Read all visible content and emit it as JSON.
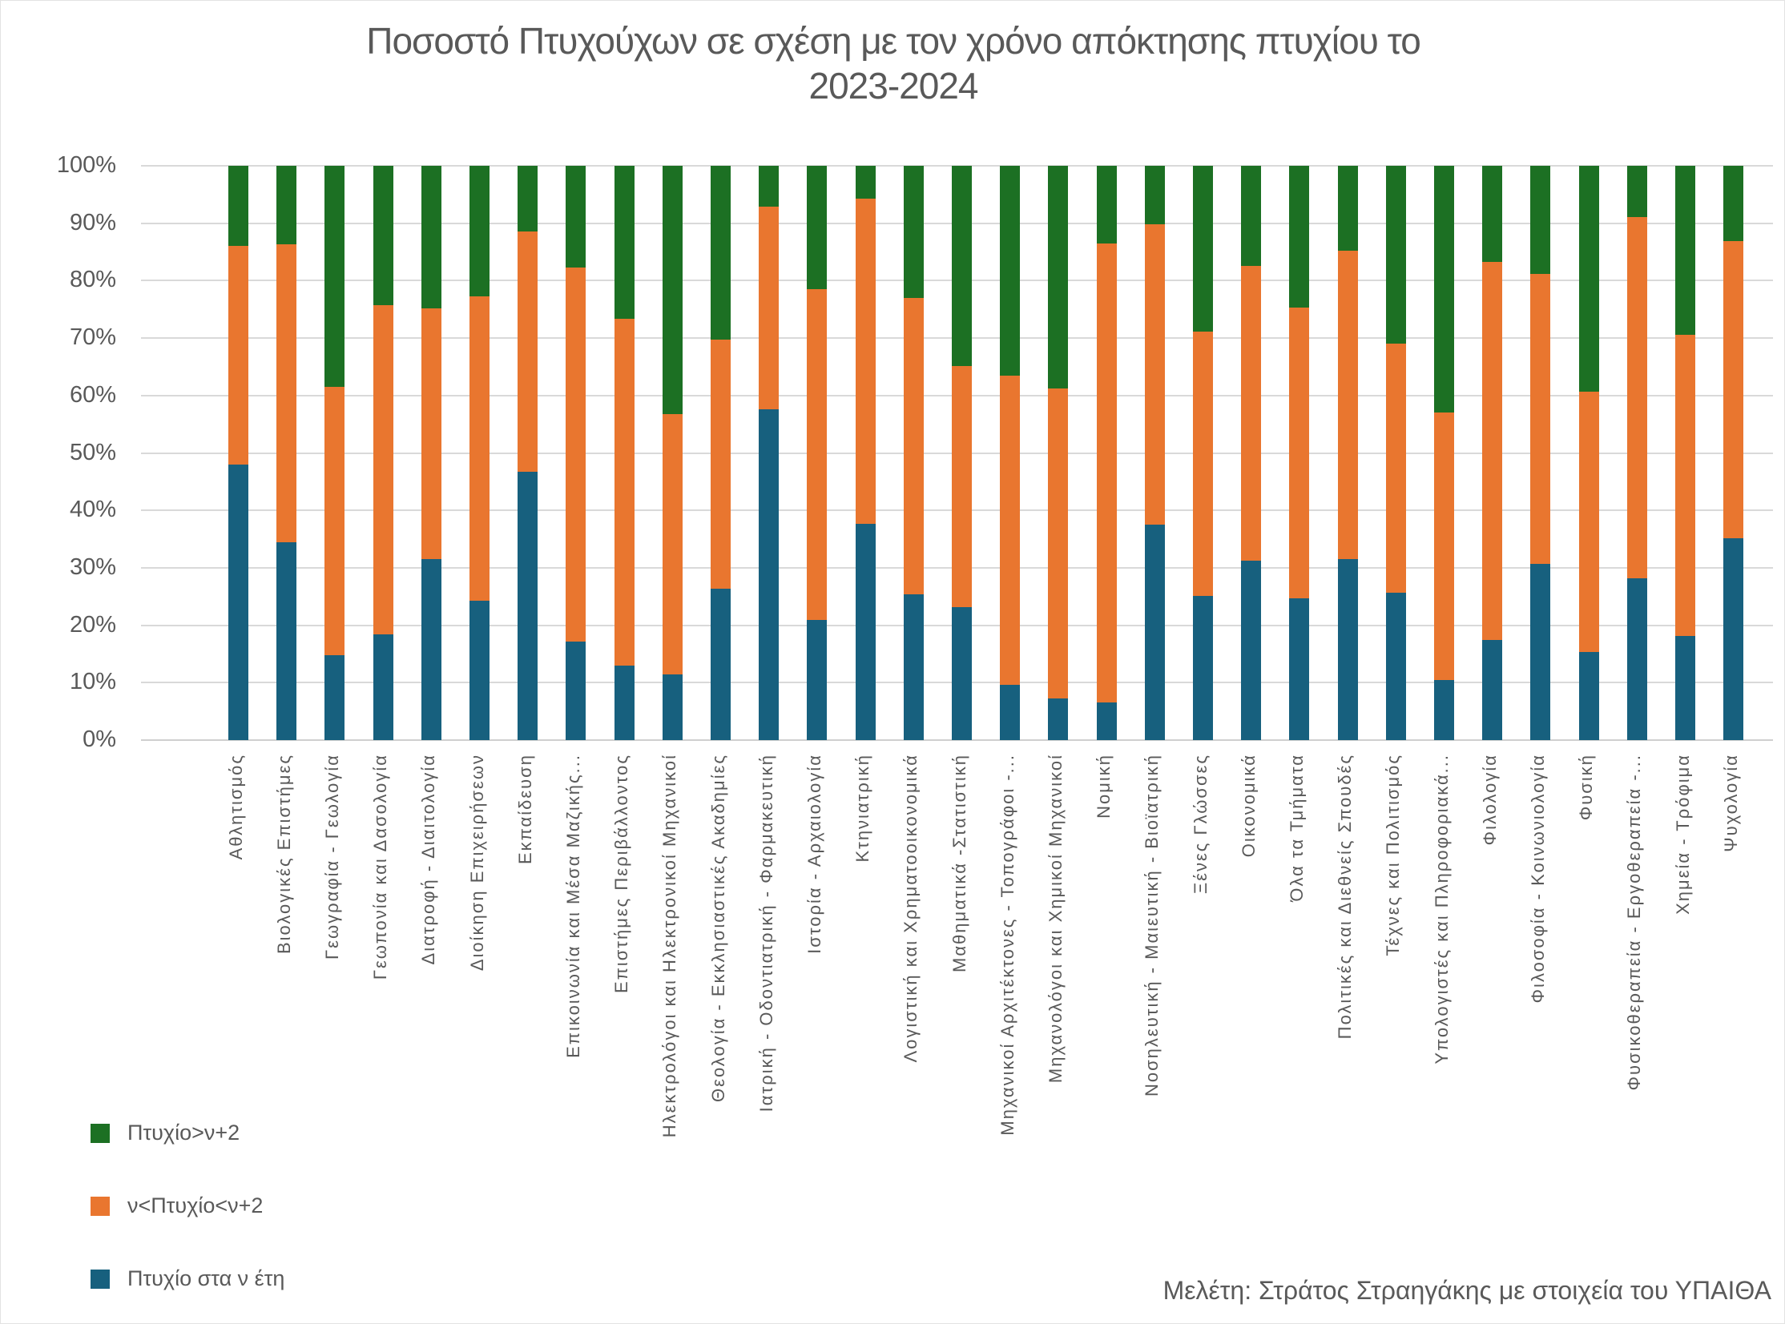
{
  "title": {
    "line1": "Ποσοστό Πτυχούχων σε σχέση με τον χρόνο απόκτησης πτυχίου το",
    "line2": "2023-2024"
  },
  "credit": "Μελέτη: Στράτος Στραηγάκης με στοιχεία του ΥΠΑΙΘΑ",
  "colors": {
    "blue": "#17607E",
    "orange": "#E9762F",
    "green": "#1C7023",
    "grid": "#D9D9D9",
    "text": "#595959"
  },
  "legend": [
    {
      "label": "Πτυχίο>ν+2",
      "color": "#1C7023"
    },
    {
      "label": "ν<Πτυχίο<ν+2",
      "color": "#E9762F"
    },
    {
      "label": "Πτυχίο στα ν έτη",
      "color": "#17607E"
    }
  ],
  "chart_data": {
    "type": "bar",
    "stacked": true,
    "stacked_percent": true,
    "title": "Ποσοστό Πτυχούχων σε σχέση με τον χρόνο απόκτησης πτυχίου το 2023-2024",
    "xlabel": "",
    "ylabel": "",
    "ylim": [
      0,
      100
    ],
    "grid": true,
    "legend_position": "bottom-left",
    "y_ticks": [
      "0%",
      "10%",
      "20%",
      "30%",
      "40%",
      "50%",
      "60%",
      "70%",
      "80%",
      "90%",
      "100%"
    ],
    "categories": [
      "Αθλητισμός",
      "Βιολογικές Επιστήμες",
      "Γεωγραφία - Γεωλογία",
      "Γεωπονία και Δασολογία",
      "Διατροφή - Διαιτολογία",
      "Διοίκηση Επιχειρήσεων",
      "Εκπαίδευση",
      "Επικοινωνία και Μέσα Μαζικής...",
      "Επιστήμες Περιβάλλοντος",
      "Ηλεκτρολόγοι και Ηλεκτρονικοί Μηχανικοί",
      "Θεολογία - Εκκλησιαστικές Ακαδημίες",
      "Ιατρική - Οδοντιατρική - Φαρμακευτική",
      "Ιστορία - Αρχαιολογία",
      "Κτηνιατρική",
      "Λογιστική και Χρηματοοικονομικά",
      "Μαθηματικά -Στατιστική",
      "Μηχανικοί Αρχιτέκτονες - Τοπογράφοι -...",
      "Μηχανολόγοι και Χημικοί Μηχανικοί",
      "Νομική",
      "Νοσηλευτική - Μαιευτική - Βιοϊατρική",
      "Ξένες Γλώσσες",
      "Οικονομικά",
      "Όλα τα Τμήματα",
      "Πολιτικές και Διεθνείς Σπουδές",
      "Τέχνες και Πολιτισμός",
      "Υπολογιστές και Πληροφοριακά...",
      "Φιλολογία",
      "Φιλοσοφία - Κοινωνιολογία",
      "Φυσική",
      "Φυσικοθεραπεία - Εργοθεραπεία -...",
      "Χημεία - Τρόφιμα",
      "Ψυχολογία"
    ],
    "series": [
      {
        "name": "Πτυχίο στα ν έτη",
        "color": "#17607E",
        "values": [
          48.0,
          34.4,
          14.8,
          18.4,
          31.5,
          24.3,
          46.7,
          17.2,
          13.0,
          11.5,
          26.4,
          57.6,
          20.9,
          37.7,
          25.4,
          23.1,
          9.6,
          7.2,
          6.5,
          37.5,
          25.1,
          31.2,
          24.7,
          31.5,
          25.6,
          10.5,
          17.4,
          30.7,
          15.3,
          28.2,
          18.2,
          35.1
        ]
      },
      {
        "name": "ν<Πτυχίο<ν+2",
        "color": "#E9762F",
        "values": [
          38.0,
          51.9,
          46.7,
          57.4,
          43.7,
          53.0,
          41.8,
          65.1,
          60.4,
          45.3,
          43.4,
          35.3,
          57.6,
          56.6,
          51.6,
          42.1,
          53.9,
          54.1,
          80.0,
          52.3,
          46.1,
          51.4,
          50.6,
          53.7,
          43.5,
          46.5,
          65.9,
          50.5,
          45.4,
          62.9,
          52.4,
          51.8
        ]
      },
      {
        "name": "Πτυχίο>ν+2",
        "color": "#1C7023",
        "values": [
          14.0,
          13.7,
          38.5,
          24.2,
          24.8,
          22.7,
          11.5,
          17.7,
          26.6,
          43.2,
          30.2,
          7.1,
          21.5,
          5.7,
          23.0,
          34.8,
          36.5,
          38.7,
          13.5,
          10.2,
          28.8,
          17.4,
          24.7,
          14.8,
          30.9,
          43.0,
          16.7,
          18.8,
          39.3,
          8.9,
          29.4,
          13.1
        ]
      }
    ]
  }
}
